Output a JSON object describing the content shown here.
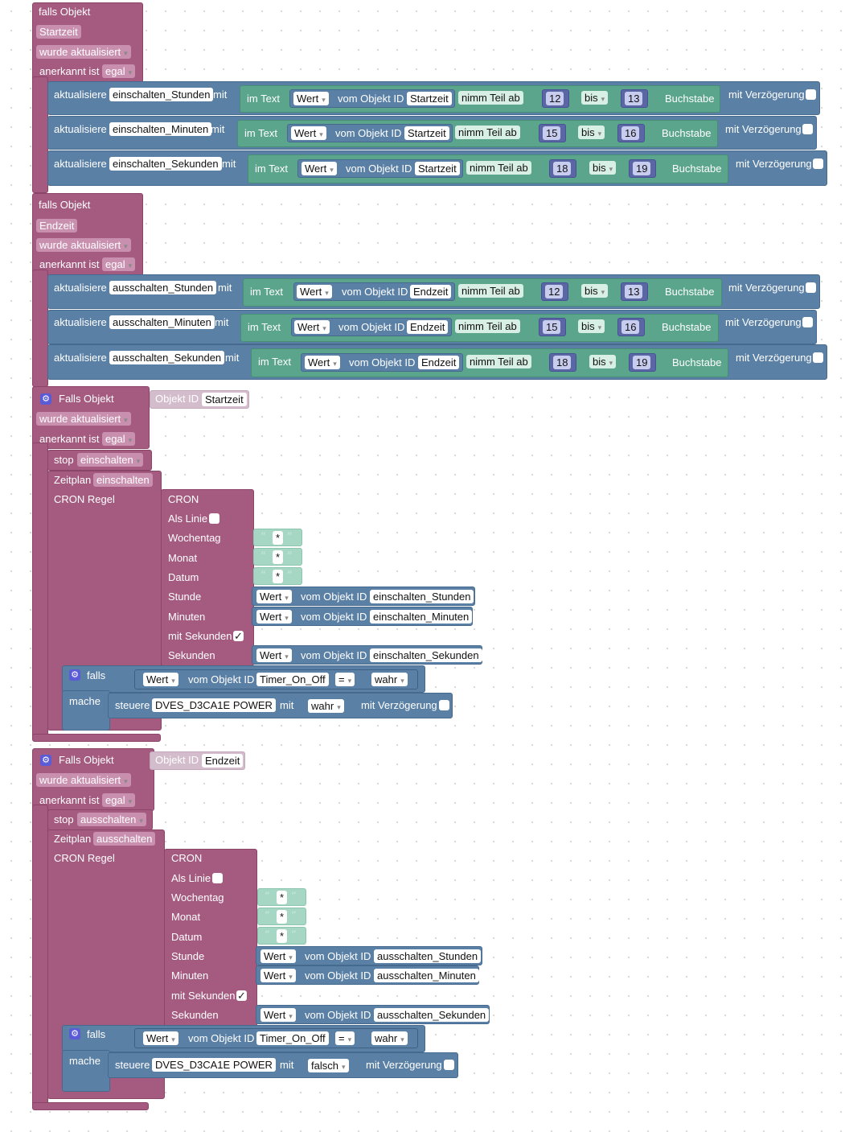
{
  "labels": {
    "falls_objekt": "falls Objekt",
    "falls_objekt_cap": "Falls Objekt",
    "wurde_aktualisiert": "wurde aktualisiert",
    "anerkannt_ist": "anerkannt ist",
    "egal": "egal",
    "aktualisiere": "aktualisiere",
    "mit": "mit",
    "im_text": "im Text",
    "wert": "Wert",
    "vom_objekt_id": "vom Objekt ID",
    "nimm_teil_ab": "nimm Teil ab",
    "bis": "bis",
    "buchstabe": "Buchstabe",
    "mit_verzoegerung": "mit Verzögerung",
    "objekt_id": "Objekt ID",
    "stop": "stop",
    "zeitplan": "Zeitplan",
    "cron_regel": "CRON Regel",
    "cron": "CRON",
    "als_linie": "Als Linie",
    "wochentag": "Wochentag",
    "monat": "Monat",
    "datum": "Datum",
    "stunde": "Stunde",
    "minuten": "Minuten",
    "mit_sekunden": "mit Sekunden",
    "sekunden": "Sekunden",
    "star": "*",
    "falls": "falls",
    "mache": "mache",
    "steuere": "steuere",
    "eq": "=",
    "checkmark": "✓"
  },
  "objects": {
    "startzeit": "Startzeit",
    "endzeit": "Endzeit",
    "ein_stunden": "einschalten_Stunden",
    "ein_minuten": "einschalten_Minuten",
    "ein_sekunden": "einschalten_Sekunden",
    "aus_stunden": "ausschalten_Stunden",
    "aus_minuten": "ausschalten_Minuten",
    "aus_sekunden": "ausschalten_Sekunden",
    "einschalten": "einschalten",
    "ausschalten": "ausschalten",
    "timer": "Timer_On_Off",
    "power": "DVES_D3CA1E POWER",
    "wahr": "wahr",
    "falsch": "falsch"
  },
  "numbers": {
    "n12": "12",
    "n13": "13",
    "n15": "15",
    "n16": "16",
    "n18": "18",
    "n19": "19"
  },
  "icons": {
    "gear": "gear-icon",
    "dropdown": "chevron-down-icon"
  },
  "colors": {
    "event_block": "#a55b80",
    "value_block": "#5b80a5",
    "text_block": "#5ba58c",
    "number_block": "#5b67a5",
    "gear_icon": "#5b5bd6"
  }
}
